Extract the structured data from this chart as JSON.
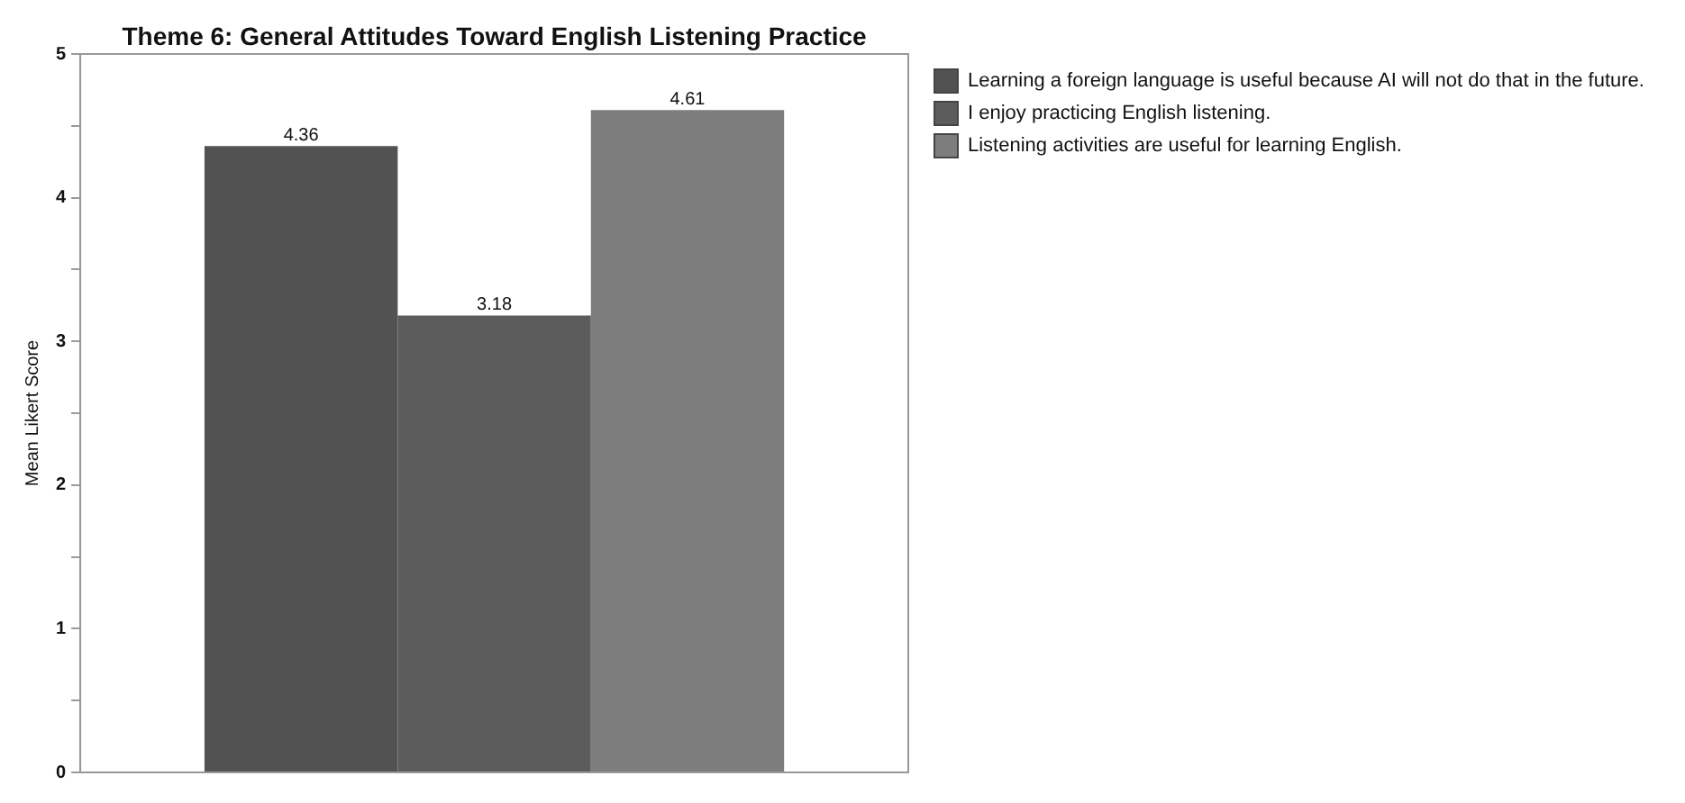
{
  "chart_data": {
    "type": "bar",
    "title": "Theme 6: General Attitudes Toward English Listening Practice",
    "ylabel": "Mean Likert Score",
    "categories": [
      null
    ],
    "series": [
      {
        "name": "Learning a foreign language is useful because AI will not do that in the future.",
        "color": "#525252",
        "values": [
          4.36
        ]
      },
      {
        "name": "I enjoy practicing English listening.",
        "color": "#5c5c5c",
        "values": [
          3.18
        ]
      },
      {
        "name": "Listening activities are useful for learning English.",
        "color": "#7d7d7d",
        "values": [
          4.61
        ]
      }
    ],
    "ylim": [
      0,
      5
    ],
    "yticks": [
      0,
      {
        "value": 0.5,
        "label": null
      },
      1,
      {
        "value": 1.5,
        "label": null
      },
      2,
      {
        "value": 2.5,
        "label": null
      },
      3,
      {
        "value": 3.5,
        "label": null
      },
      4,
      {
        "value": 4.5,
        "label": null
      },
      5
    ],
    "data_labels": true,
    "grid": false,
    "legend": "top right"
  }
}
